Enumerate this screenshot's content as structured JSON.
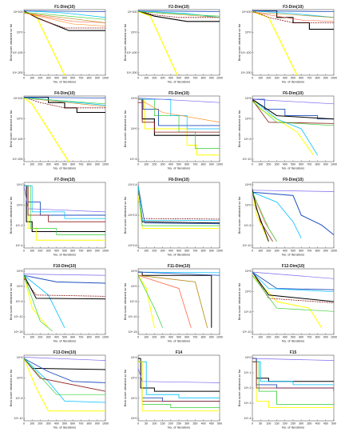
{
  "figure": {
    "xlabel": "No. of Iterations",
    "ylabel": "Best score obtained so far",
    "series_colors": [
      "#000000",
      "#8b1a1a",
      "#ffff00",
      "#ff6347",
      "#ff7f00",
      "#b8860b",
      "#32cd32",
      "#00bfff",
      "#1e4fbf",
      "#7b68ee",
      "#ff69b4"
    ]
  },
  "chart_data": [
    {
      "type": "line",
      "title": "F1-Dim(10)",
      "x_ticks": [
        "0",
        "100",
        "200",
        "300",
        "400",
        "500",
        "600",
        "700",
        "800",
        "900",
        "1000"
      ],
      "y_ticks": [
        "10^100",
        "10^0",
        "10^-100",
        "10^-200"
      ],
      "xlim": [
        0,
        1000
      ]
    },
    {
      "type": "line",
      "title": "F2-Dim(10)",
      "x_ticks": [
        "0",
        "100",
        "200",
        "300",
        "400",
        "500",
        "600",
        "700",
        "800",
        "900",
        "1000"
      ],
      "y_ticks": [
        "10^100",
        "10^0",
        "10^-100",
        "10^-200"
      ],
      "xlim": [
        0,
        1000
      ]
    },
    {
      "type": "line",
      "title": "F3-Dim(10)",
      "x_ticks": [
        "0",
        "100",
        "200",
        "300",
        "400",
        "500",
        "600",
        "700",
        "800",
        "900",
        "1000"
      ],
      "y_ticks": [
        "10^100",
        "10^0",
        "10^-100",
        "10^-200"
      ],
      "xlim": [
        0,
        1000
      ]
    },
    {
      "type": "line",
      "title": "F4-Dim(10)",
      "x_ticks": [
        "0",
        "100",
        "200",
        "300",
        "400",
        "500",
        "600",
        "700",
        "800",
        "900",
        "1000"
      ],
      "y_ticks": [
        "10^100",
        "10^0",
        "10^-100",
        "10^-200"
      ],
      "xlim": [
        0,
        1000
      ]
    },
    {
      "type": "line",
      "title": "F5-Dim(10)",
      "x_ticks": [
        "0",
        "100",
        "200",
        "300",
        "400",
        "500",
        "600",
        "700",
        "800",
        "900",
        "1000"
      ],
      "y_ticks": [
        "10^5",
        "10^0",
        "10^-5"
      ],
      "xlim": [
        0,
        1000
      ]
    },
    {
      "type": "line",
      "title": "F6-Dim(10)",
      "x_ticks": [
        "0",
        "100",
        "200",
        "300",
        "400",
        "500",
        "600",
        "700",
        "800",
        "900",
        "1000"
      ],
      "y_ticks": [
        "10^5",
        "10^0",
        "10^-5",
        "10^-10"
      ],
      "xlim": [
        0,
        1000
      ]
    },
    {
      "type": "line",
      "title": "F7-Dim(10)",
      "x_ticks": [
        "0",
        "100",
        "200",
        "300",
        "400",
        "500",
        "600",
        "700",
        "800",
        "900",
        "1000"
      ],
      "y_ticks": [
        "10^2",
        "10^0",
        "10^-2",
        "10^-4"
      ],
      "xlim": [
        0,
        1000
      ]
    },
    {
      "type": "line",
      "title": "F8-Dim(10)",
      "x_ticks": [
        "0",
        "100",
        "200",
        "300",
        "400",
        "500",
        "600",
        "700",
        "800",
        "900",
        "1000"
      ],
      "y_ticks": [
        "-10^2.4",
        "-10^2.5",
        "-10^2.6"
      ],
      "xlim": [
        0,
        1000
      ]
    },
    {
      "type": "line",
      "title": "F9-Dim(10)",
      "x_ticks": [
        "0",
        "100",
        "200",
        "300",
        "400",
        "500",
        "600",
        "700",
        "800",
        "900",
        "1000"
      ],
      "y_ticks": [
        "10^5",
        "10^0",
        "10^-5",
        "10^-10"
      ],
      "xlim": [
        0,
        1000
      ]
    },
    {
      "type": "line",
      "title": "F10-Dim(10)",
      "x_ticks": [
        "0",
        "100",
        "200",
        "300",
        "400",
        "500",
        "600",
        "700",
        "800",
        "900",
        "1000"
      ],
      "y_ticks": [
        "10^5",
        "10^0",
        "10^-5",
        "10^-10",
        "10^-15"
      ],
      "xlim": [
        0,
        1000
      ]
    },
    {
      "type": "line",
      "title": "F11-Dim(10)",
      "x_ticks": [
        "0",
        "100",
        "200",
        "300",
        "400",
        "500",
        "600",
        "700",
        "800",
        "900",
        "1000"
      ],
      "y_ticks": [
        "10^5",
        "10^0",
        "10^-5",
        "10^-10",
        "10^-15"
      ],
      "xlim": [
        0,
        1000
      ]
    },
    {
      "type": "line",
      "title": "F12-Dim(10)",
      "x_ticks": [
        "0",
        "100",
        "200",
        "300",
        "400",
        "500",
        "600",
        "700",
        "800",
        "900",
        "1000"
      ],
      "y_ticks": [
        "10^5",
        "10^0",
        "10^-5",
        "10^-10"
      ],
      "xlim": [
        0,
        1000
      ]
    },
    {
      "type": "line",
      "title": "F13-Dim(10)",
      "x_ticks": [
        "0",
        "100",
        "200",
        "300",
        "400",
        "500",
        "600",
        "700",
        "800",
        "900",
        "1000"
      ],
      "y_ticks": [
        "10^5",
        "10^0",
        "10^-5",
        "10^-10"
      ],
      "xlim": [
        0,
        1000
      ]
    },
    {
      "type": "line",
      "title": "F14",
      "x_ticks": [
        "0",
        "50",
        "100",
        "150",
        "200",
        "250",
        "300",
        "350",
        "400",
        "450",
        "500"
      ],
      "y_ticks": [
        "10^3",
        "10^2",
        "10^1",
        "10^0"
      ],
      "xlim": [
        0,
        500
      ]
    },
    {
      "type": "line",
      "title": "F15",
      "x_ticks": [
        "0",
        "50",
        "100",
        "150",
        "200",
        "250",
        "300",
        "350",
        "400",
        "450",
        "500"
      ],
      "y_ticks": [
        "10^0",
        "10^-1",
        "10^-2",
        "10^-3",
        "10^-4"
      ],
      "xlim": [
        0,
        500
      ]
    }
  ]
}
